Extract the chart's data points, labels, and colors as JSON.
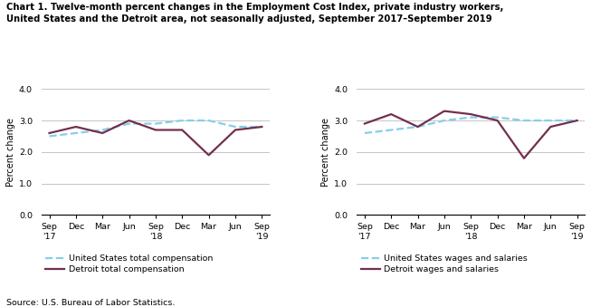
{
  "title_line1": "Chart 1. Twelve-month percent changes in the Employment Cost Index, private industry workers,",
  "title_line2": "United States and the Detroit area, not seasonally adjusted, September 2017–September 2019",
  "source": "Source: U.S. Bureau of Labor Statistics.",
  "x_labels": [
    "Sep\n'17",
    "Dec",
    "Mar",
    "Jun",
    "Sep\n'18",
    "Dec",
    "Mar",
    "Jun",
    "Sep\n'19"
  ],
  "ylabel": "Percent change",
  "ylim": [
    0.0,
    4.0
  ],
  "yticks": [
    0.0,
    1.0,
    2.0,
    3.0,
    4.0
  ],
  "left_us": [
    2.5,
    2.6,
    2.7,
    2.9,
    2.9,
    3.0,
    3.0,
    2.8,
    2.8
  ],
  "left_detroit": [
    2.6,
    2.8,
    2.6,
    3.0,
    2.7,
    2.7,
    1.9,
    2.7,
    2.8
  ],
  "right_us": [
    2.6,
    2.7,
    2.8,
    3.0,
    3.1,
    3.1,
    3.0,
    3.0,
    3.0
  ],
  "right_detroit": [
    2.9,
    3.2,
    2.8,
    3.3,
    3.2,
    3.0,
    1.8,
    2.8,
    3.0
  ],
  "us_color": "#87CEEB",
  "detroit_color": "#722F4E",
  "linewidth": 1.6,
  "left_legend1": "United States total compensation",
  "left_legend2": "Detroit total compensation",
  "right_legend1": "United States wages and salaries",
  "right_legend2": "Detroit wages and salaries"
}
